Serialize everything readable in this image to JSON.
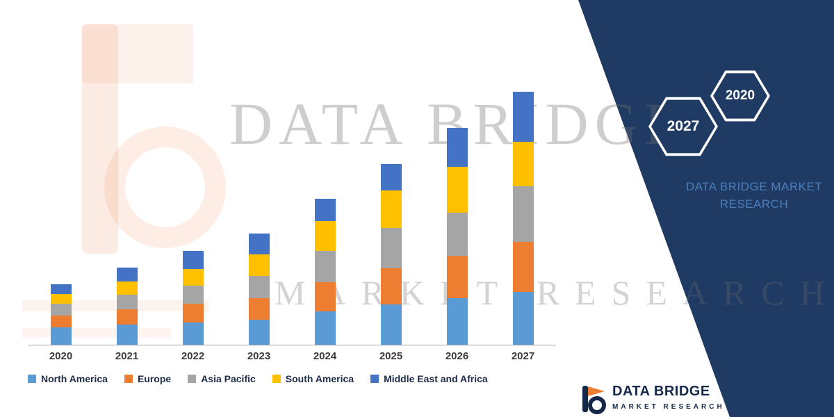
{
  "brand_panel": {
    "navy_color": "#1F3A63",
    "accent_text_color": "#4A7EBB",
    "hexagon_left_year": "2027",
    "hexagon_right_year": "2020",
    "title_line1": "DATA BRIDGE MARKET",
    "title_line2": "RESEARCH"
  },
  "watermark": {
    "line1": "DATA BRIDGE",
    "line2": "MARKET RESEARCH"
  },
  "footer_logo": {
    "title": "DATA BRIDGE",
    "subtitle": "MARKET RESEARCH"
  },
  "chart_data": {
    "type": "bar",
    "stacked": true,
    "title": "",
    "xlabel": "",
    "ylabel": "",
    "y_axis_visible": false,
    "legend_position": "bottom",
    "categories": [
      "2020",
      "2021",
      "2022",
      "2023",
      "2024",
      "2025",
      "2026",
      "2027"
    ],
    "series": [
      {
        "name": "North America",
        "color": "#5B9BD5",
        "values": [
          25,
          29,
          32,
          36,
          48,
          58,
          67,
          76
        ]
      },
      {
        "name": "Europe",
        "color": "#ED7D31",
        "values": [
          17,
          22,
          27,
          31,
          42,
          52,
          61,
          72
        ]
      },
      {
        "name": "Asia Pacific",
        "color": "#A5A5A5",
        "values": [
          17,
          21,
          26,
          32,
          45,
          58,
          62,
          80
        ]
      },
      {
        "name": "South America",
        "color": "#FFC000",
        "values": [
          14,
          19,
          24,
          31,
          43,
          54,
          66,
          64
        ]
      },
      {
        "name": "Middle East and Africa",
        "color": "#4472C4",
        "values": [
          14,
          20,
          26,
          30,
          32,
          38,
          56,
          72
        ]
      }
    ]
  }
}
